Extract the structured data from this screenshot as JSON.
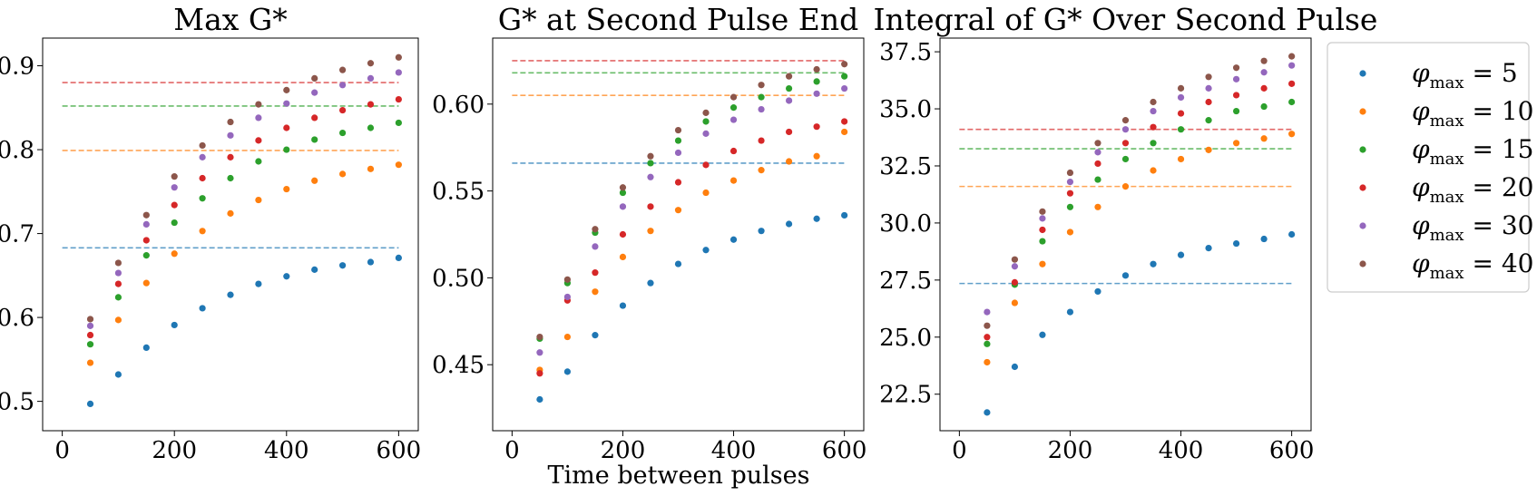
{
  "figure": {
    "shared_xlabel": "Time between pulses"
  },
  "legend": {
    "placement": "right, outside plots",
    "entries": [
      {
        "symbol": "φ",
        "subscript": "max",
        "text": " = 5",
        "color": "#1f77b4"
      },
      {
        "symbol": "φ",
        "subscript": "max",
        "text": " = 10",
        "color": "#ff7f0e"
      },
      {
        "symbol": "φ",
        "subscript": "max",
        "text": " = 15",
        "color": "#2ca02c"
      },
      {
        "symbol": "φ",
        "subscript": "max",
        "text": " = 20",
        "color": "#d62728"
      },
      {
        "symbol": "φ",
        "subscript": "max",
        "text": " = 30",
        "color": "#9467bd"
      },
      {
        "symbol": "φ",
        "subscript": "max",
        "text": " = 40",
        "color": "#8c564b"
      }
    ]
  },
  "chart_data": [
    {
      "type": "scatter",
      "title": "Max G*",
      "xlim": [
        -35,
        635
      ],
      "ylim": [
        0.465,
        0.933
      ],
      "xticks": [
        0,
        200,
        400,
        600
      ],
      "yticks": [
        0.5,
        0.6,
        0.7,
        0.8,
        0.9
      ],
      "ytick_labels": [
        "0.5",
        "0.6",
        "0.7",
        "0.8",
        "0.9"
      ],
      "x": [
        50,
        100,
        150,
        200,
        250,
        300,
        350,
        400,
        450,
        500,
        550,
        600
      ],
      "series": [
        {
          "name": "φmax = 5",
          "color": "#1f77b4",
          "values": [
            0.497,
            0.532,
            0.564,
            0.591,
            0.611,
            0.627,
            0.64,
            0.649,
            0.657,
            0.662,
            0.666,
            0.671
          ],
          "reference": 0.683
        },
        {
          "name": "φmax = 10",
          "color": "#ff7f0e",
          "values": [
            0.546,
            0.597,
            0.641,
            0.676,
            0.703,
            0.724,
            0.74,
            0.753,
            0.763,
            0.771,
            0.777,
            0.782
          ],
          "reference": 0.799
        },
        {
          "name": "φmax = 15",
          "color": "#2ca02c",
          "values": [
            0.568,
            0.624,
            0.674,
            0.713,
            0.742,
            0.766,
            0.786,
            0.8,
            0.812,
            0.82,
            0.826,
            0.832
          ],
          "reference": 0.852
        },
        {
          "name": "φmax = 20",
          "color": "#d62728",
          "values": [
            0.579,
            0.64,
            0.692,
            0.734,
            0.766,
            0.791,
            0.811,
            0.826,
            0.838,
            0.847,
            0.854,
            0.86
          ],
          "reference": 0.88
        },
        {
          "name": "φmax = 30",
          "color": "#9467bd",
          "values": [
            0.59,
            0.653,
            0.711,
            0.755,
            0.791,
            0.817,
            0.838,
            0.855,
            0.868,
            0.877,
            0.885,
            0.892
          ],
          "reference": null
        },
        {
          "name": "φmax = 40",
          "color": "#8c564b",
          "values": [
            0.598,
            0.665,
            0.722,
            0.768,
            0.805,
            0.833,
            0.854,
            0.871,
            0.885,
            0.895,
            0.903,
            0.91
          ],
          "reference": null
        }
      ]
    },
    {
      "type": "scatter",
      "title": "G* at Second Pulse End",
      "xlim": [
        -35,
        635
      ],
      "ylim": [
        0.412,
        0.638
      ],
      "xticks": [
        0,
        200,
        400,
        600
      ],
      "yticks": [
        0.45,
        0.5,
        0.55,
        0.6
      ],
      "ytick_labels": [
        "0.45",
        "0.50",
        "0.55",
        "0.60"
      ],
      "x": [
        50,
        100,
        150,
        200,
        250,
        300,
        350,
        400,
        450,
        500,
        550,
        600
      ],
      "series": [
        {
          "name": "φmax = 5",
          "color": "#1f77b4",
          "values": [
            0.43,
            0.446,
            0.467,
            0.484,
            0.497,
            0.508,
            0.516,
            0.522,
            0.527,
            0.531,
            0.534,
            0.536
          ],
          "reference": 0.566
        },
        {
          "name": "φmax = 10",
          "color": "#ff7f0e",
          "values": [
            0.447,
            0.466,
            0.492,
            0.512,
            0.527,
            0.539,
            0.549,
            0.556,
            0.562,
            0.567,
            0.57,
            0.584
          ],
          "reference": 0.605
        },
        {
          "name": "φmax = 15",
          "color": "#2ca02c",
          "values": [
            0.465,
            0.497,
            0.526,
            0.549,
            0.566,
            0.579,
            0.59,
            0.598,
            0.604,
            0.609,
            0.613,
            0.616
          ],
          "reference": 0.618
        },
        {
          "name": "φmax = 20",
          "color": "#d62728",
          "values": [
            0.445,
            0.487,
            0.503,
            0.525,
            0.541,
            0.555,
            0.565,
            0.573,
            0.579,
            0.584,
            0.587,
            0.59
          ],
          "reference": 0.625
        },
        {
          "name": "φmax = 30",
          "color": "#9467bd",
          "values": [
            0.457,
            0.489,
            0.518,
            0.541,
            0.558,
            0.572,
            0.583,
            0.591,
            0.597,
            0.602,
            0.606,
            0.609
          ],
          "reference": null
        },
        {
          "name": "φmax = 40",
          "color": "#8c564b",
          "values": [
            0.466,
            0.499,
            0.528,
            0.552,
            0.57,
            0.585,
            0.595,
            0.604,
            0.611,
            0.616,
            0.62,
            0.623
          ],
          "reference": null
        }
      ]
    },
    {
      "type": "scatter",
      "title": "Integral of G* Over Second Pulse",
      "xlim": [
        -35,
        635
      ],
      "ylim": [
        20.9,
        38.1
      ],
      "xticks": [
        0,
        200,
        400,
        600
      ],
      "yticks": [
        22.5,
        25.0,
        27.5,
        30.0,
        32.5,
        35.0,
        37.5
      ],
      "ytick_labels": [
        "22.5",
        "25.0",
        "27.5",
        "30.0",
        "32.5",
        "35.0",
        "37.5"
      ],
      "x": [
        50,
        100,
        150,
        200,
        250,
        300,
        350,
        400,
        450,
        500,
        550,
        600
      ],
      "series": [
        {
          "name": "φmax = 5",
          "color": "#1f77b4",
          "values": [
            21.7,
            23.7,
            25.1,
            26.1,
            27.0,
            27.7,
            28.2,
            28.6,
            28.9,
            29.1,
            29.3,
            29.5
          ],
          "reference": 27.35
        },
        {
          "name": "φmax = 10",
          "color": "#ff7f0e",
          "values": [
            23.9,
            26.5,
            28.2,
            29.6,
            30.7,
            31.6,
            32.3,
            32.8,
            33.2,
            33.5,
            33.7,
            33.9
          ],
          "reference": 31.6
        },
        {
          "name": "φmax = 15",
          "color": "#2ca02c",
          "values": [
            24.7,
            27.3,
            29.2,
            30.7,
            31.9,
            32.8,
            33.5,
            34.1,
            34.5,
            34.9,
            35.1,
            35.3
          ],
          "reference": 33.25
        },
        {
          "name": "φmax = 20",
          "color": "#d62728",
          "values": [
            25.0,
            27.4,
            29.7,
            31.3,
            32.6,
            33.5,
            34.2,
            34.8,
            35.3,
            35.6,
            35.9,
            36.1
          ],
          "reference": 34.1
        },
        {
          "name": "φmax = 30",
          "color": "#9467bd",
          "values": [
            26.1,
            28.1,
            30.2,
            31.8,
            33.1,
            34.1,
            34.9,
            35.5,
            35.9,
            36.3,
            36.6,
            36.9
          ],
          "reference": null
        },
        {
          "name": "φmax = 40",
          "color": "#8c564b",
          "values": [
            25.5,
            28.4,
            30.5,
            32.2,
            33.5,
            34.5,
            35.3,
            35.9,
            36.4,
            36.8,
            37.1,
            37.3
          ],
          "reference": null
        }
      ]
    }
  ]
}
